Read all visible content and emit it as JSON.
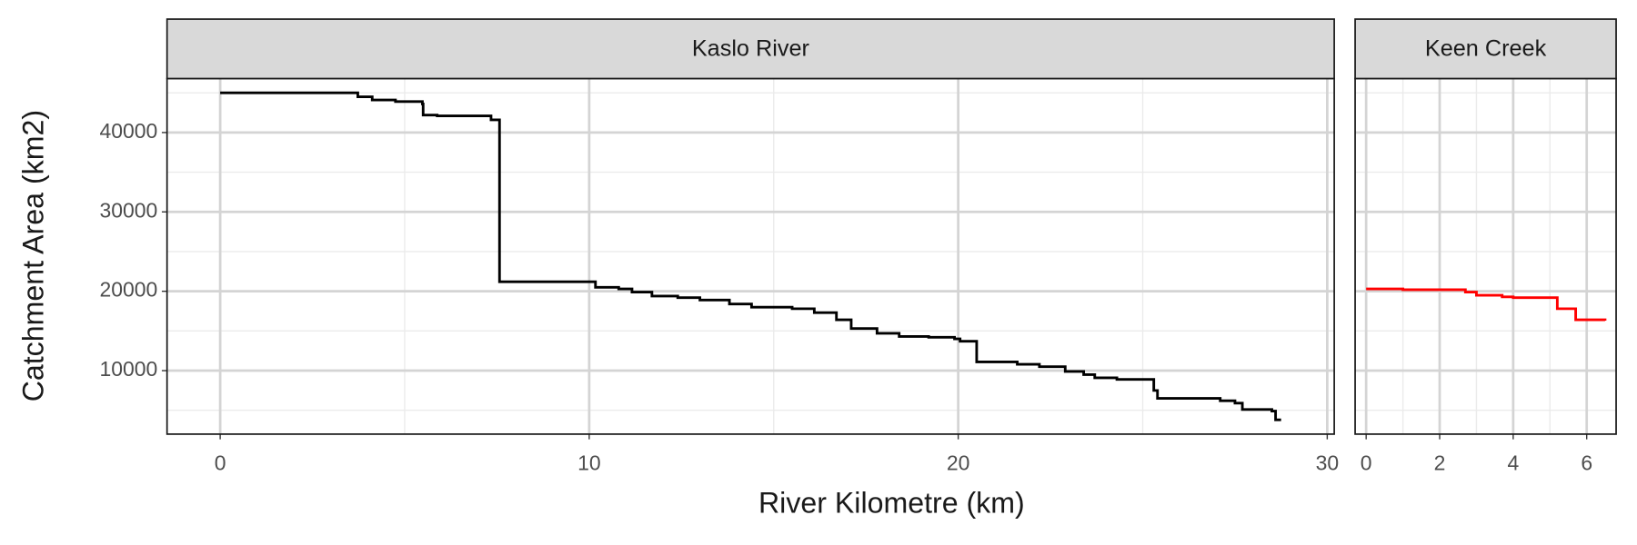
{
  "chart_data": {
    "type": "step",
    "xlabel": "River Kilometre (km)",
    "ylabel": "Catchment Area (km2)",
    "ylim": [
      2000,
      46800
    ],
    "yticks": [
      10000,
      20000,
      30000,
      40000
    ],
    "minor_yticks": [
      5000,
      15000,
      25000,
      35000,
      45000
    ],
    "grid": true,
    "panels": [
      {
        "title": "Kaslo River",
        "color": "#000000",
        "xlim": [
          -1.44,
          30.19
        ],
        "xticks": [
          0,
          10,
          20,
          30
        ],
        "minor_xticks": [
          5,
          15,
          25
        ],
        "x": [
          0,
          3.73,
          4.12,
          4.75,
          5.48,
          5.5,
          5.88,
          7.34,
          7.57,
          10.17,
          10.8,
          11.16,
          11.7,
          12.4,
          13,
          13.8,
          14.4,
          15.5,
          16.1,
          16.7,
          17.1,
          17.8,
          18.4,
          19.2,
          19.9,
          20.05,
          20.5,
          21.6,
          22.2,
          22.9,
          23.4,
          23.7,
          24.3,
          25.3,
          25.4,
          27.1,
          27.5,
          27.7,
          28.5,
          28.6,
          28.75
        ],
        "values": [
          45000,
          44500,
          44100,
          43900,
          43600,
          42200,
          42100,
          41600,
          21200,
          20500,
          20300,
          19900,
          19400,
          19200,
          18900,
          18400,
          18000,
          17800,
          17300,
          16400,
          15300,
          14700,
          14300,
          14200,
          14000,
          13700,
          11100,
          10800,
          10500,
          9900,
          9500,
          9100,
          8900,
          7500,
          6500,
          6200,
          5900,
          5100,
          4900,
          3800,
          3800
        ]
      },
      {
        "title": "Keen Creek",
        "color": "#ff0000",
        "xlim": [
          -0.3,
          6.8
        ],
        "xticks": [
          0,
          2,
          4,
          6
        ],
        "minor_xticks": [
          1,
          3,
          5
        ],
        "x": [
          0,
          1.0,
          2.7,
          3.0,
          3.7,
          4.0,
          5.2,
          5.7,
          6.5
        ],
        "values": [
          20300,
          20200,
          19900,
          19500,
          19300,
          19200,
          17800,
          16400,
          16300
        ]
      }
    ]
  }
}
